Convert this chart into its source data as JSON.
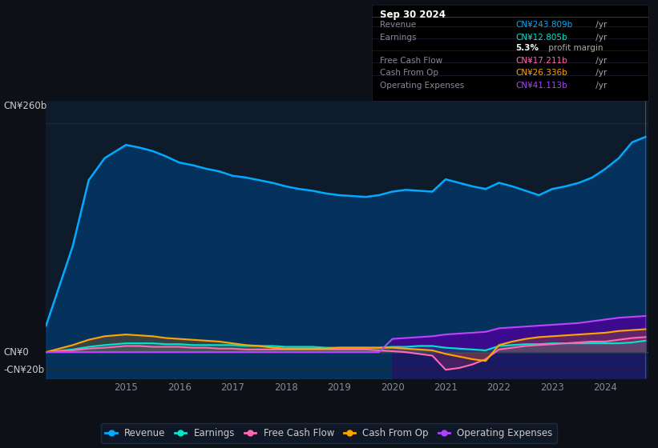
{
  "bg_color": "#0d1117",
  "plot_bg_color": "#0d1b2a",
  "title_box": {
    "date": "Sep 30 2024",
    "rows": [
      {
        "label": "Revenue",
        "value": "CN¥243.809b /yr",
        "value_color": "#00aaff"
      },
      {
        "label": "Earnings",
        "value": "CN¥12.805b /yr",
        "value_color": "#00e5cc"
      },
      {
        "label": "",
        "value": "5.3% profit margin",
        "value_color": "#ffffff"
      },
      {
        "label": "Free Cash Flow",
        "value": "CN¥17.211b /yr",
        "value_color": "#ff69b4"
      },
      {
        "label": "Cash From Op",
        "value": "CN¥26.336b /yr",
        "value_color": "#ffa500"
      },
      {
        "label": "Operating Expenses",
        "value": "CN¥41.113b /yr",
        "value_color": "#aa44ff"
      }
    ]
  },
  "ylabel_top": "CN¥260b",
  "ylabel_zero": "CN¥0",
  "ylabel_neg": "-CN¥20b",
  "ylim": [
    -30,
    285
  ],
  "legend": [
    {
      "label": "Revenue",
      "color": "#00aaff"
    },
    {
      "label": "Earnings",
      "color": "#00e5cc"
    },
    {
      "label": "Free Cash Flow",
      "color": "#ff69b4"
    },
    {
      "label": "Cash From Op",
      "color": "#ffa500"
    },
    {
      "label": "Operating Expenses",
      "color": "#aa44ff"
    }
  ],
  "years": [
    2013.5,
    2014.0,
    2014.3,
    2014.6,
    2015.0,
    2015.25,
    2015.5,
    2015.75,
    2016.0,
    2016.25,
    2016.5,
    2016.75,
    2017.0,
    2017.25,
    2017.5,
    2017.75,
    2018.0,
    2018.25,
    2018.5,
    2018.75,
    2019.0,
    2019.25,
    2019.5,
    2019.75,
    2020.0,
    2020.25,
    2020.5,
    2020.75,
    2021.0,
    2021.25,
    2021.5,
    2021.75,
    2022.0,
    2022.25,
    2022.5,
    2022.75,
    2023.0,
    2023.25,
    2023.5,
    2023.75,
    2024.0,
    2024.25,
    2024.5,
    2024.75
  ],
  "revenue": [
    30,
    120,
    195,
    220,
    235,
    232,
    228,
    222,
    215,
    212,
    208,
    205,
    200,
    198,
    195,
    192,
    188,
    185,
    183,
    180,
    178,
    177,
    176,
    178,
    182,
    184,
    183,
    182,
    196,
    192,
    188,
    185,
    192,
    188,
    183,
    178,
    185,
    188,
    192,
    198,
    208,
    220,
    238,
    244
  ],
  "earnings": [
    0,
    3,
    6,
    8,
    10,
    10,
    10,
    9,
    9,
    8,
    8,
    8,
    8,
    7,
    7,
    7,
    6,
    6,
    6,
    5,
    5,
    5,
    5,
    5,
    6,
    6,
    7,
    7,
    5,
    4,
    3,
    2,
    7,
    8,
    9,
    9,
    10,
    10,
    10,
    10,
    10,
    10,
    11,
    13
  ],
  "fcf": [
    0,
    2,
    4,
    5,
    7,
    7,
    6,
    6,
    6,
    5,
    5,
    4,
    4,
    3,
    3,
    3,
    3,
    3,
    3,
    3,
    3,
    3,
    3,
    2,
    1,
    0,
    -2,
    -4,
    -20,
    -18,
    -14,
    -8,
    3,
    5,
    7,
    8,
    9,
    10,
    11,
    12,
    12,
    14,
    16,
    17
  ],
  "cashfromop": [
    0,
    8,
    14,
    18,
    20,
    19,
    18,
    16,
    15,
    14,
    13,
    12,
    10,
    8,
    7,
    5,
    4,
    4,
    4,
    4,
    5,
    5,
    5,
    5,
    5,
    4,
    3,
    2,
    -2,
    -5,
    -8,
    -10,
    8,
    12,
    15,
    17,
    18,
    19,
    20,
    21,
    22,
    24,
    25,
    26
  ],
  "opex": [
    0,
    0,
    0,
    0,
    0,
    0,
    0,
    0,
    0,
    0,
    0,
    0,
    0,
    0,
    0,
    0,
    0,
    0,
    0,
    0,
    0,
    0,
    0,
    0,
    15,
    16,
    17,
    18,
    20,
    21,
    22,
    23,
    27,
    28,
    29,
    30,
    31,
    32,
    33,
    35,
    37,
    39,
    40,
    41
  ]
}
